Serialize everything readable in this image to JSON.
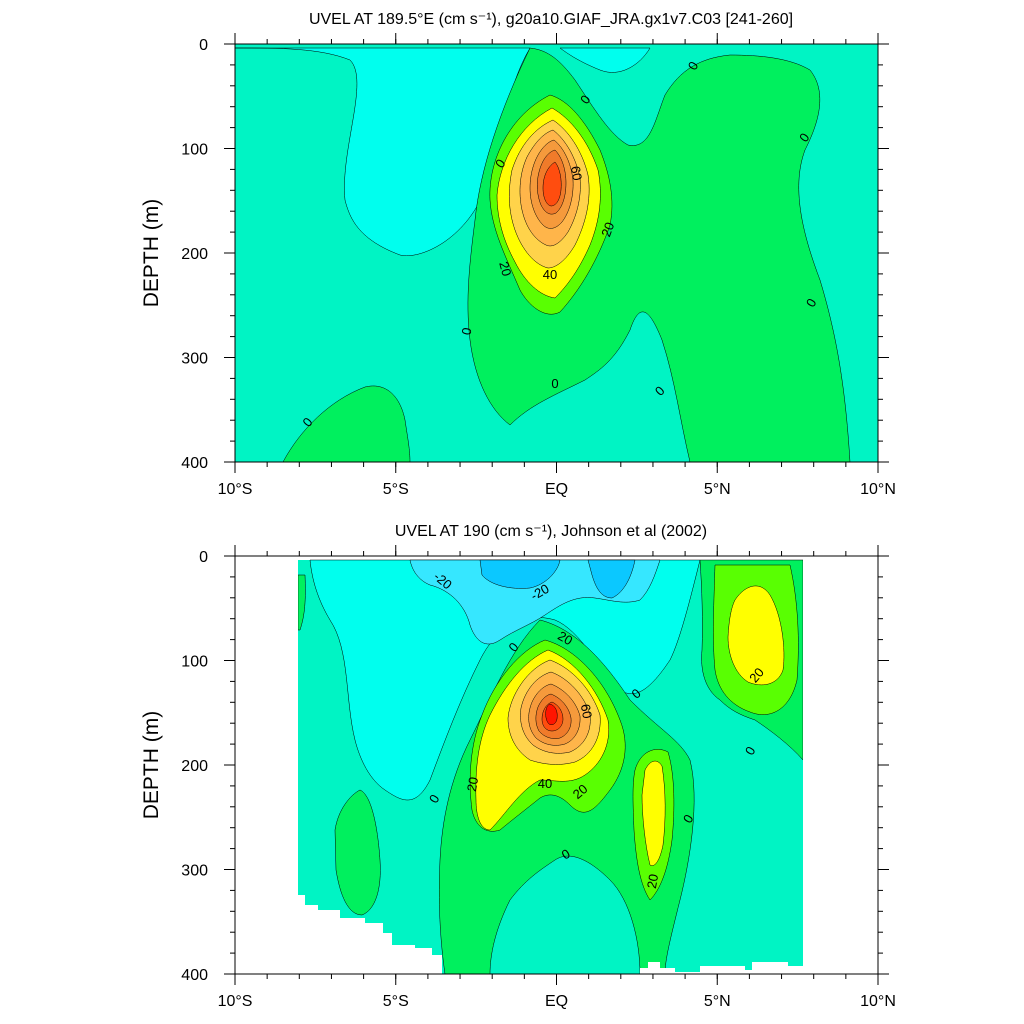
{
  "chart_data": [
    {
      "type": "contour",
      "title": "UVEL AT 189.5°E (cm s⁻¹), g20a10.GIAF_JRA.gx1v7.C03 [241-260]",
      "xlabel": "",
      "ylabel": "DEPTH (m)",
      "xlim": [
        -10,
        10
      ],
      "ylim": [
        0,
        400
      ],
      "y_reversed": true,
      "x_ticks": [
        {
          "value": -10,
          "label": "10°S"
        },
        {
          "value": -5,
          "label": "5°S"
        },
        {
          "value": 0,
          "label": "EQ"
        },
        {
          "value": 5,
          "label": "5°N"
        },
        {
          "value": 10,
          "label": "10°N"
        }
      ],
      "y_ticks": [
        {
          "value": 0,
          "label": "0"
        },
        {
          "value": 100,
          "label": "100"
        },
        {
          "value": 200,
          "label": "200"
        },
        {
          "value": 300,
          "label": "300"
        },
        {
          "value": 400,
          "label": "400"
        }
      ],
      "contour_interval": 10,
      "core": {
        "lat": 0.1,
        "depth": 145,
        "max_speed": 80
      },
      "contour_labels": [
        {
          "text": "0",
          "lat": 4.6,
          "depth": 20
        },
        {
          "text": "0",
          "lat": 1.3,
          "depth": 52
        },
        {
          "text": "0",
          "lat": 8.3,
          "depth": 90
        },
        {
          "text": "0",
          "lat": -1.4,
          "depth": 110
        },
        {
          "text": "60",
          "lat": 0.6,
          "depth": 125
        },
        {
          "text": "20",
          "lat": 2.0,
          "depth": 180
        },
        {
          "text": "20",
          "lat": -1.5,
          "depth": 215
        },
        {
          "text": "40",
          "lat": 0.0,
          "depth": 218
        },
        {
          "text": "0",
          "lat": 8.4,
          "depth": 245
        },
        {
          "text": "0",
          "lat": -2.5,
          "depth": 272
        },
        {
          "text": "0",
          "lat": 0.2,
          "depth": 325
        },
        {
          "text": "0",
          "lat": 3.6,
          "depth": 330
        },
        {
          "text": "0",
          "lat": -7.7,
          "depth": 362
        }
      ]
    },
    {
      "type": "contour",
      "title": "UVEL AT 190 (cm s⁻¹), Johnson et al (2002)",
      "xlabel": "",
      "ylabel": "DEPTH (m)",
      "xlim": [
        -10,
        10
      ],
      "ylim": [
        0,
        400
      ],
      "y_reversed": true,
      "x_ticks": [
        {
          "value": -10,
          "label": "10°S"
        },
        {
          "value": -5,
          "label": "5°S"
        },
        {
          "value": 0,
          "label": "EQ"
        },
        {
          "value": 5,
          "label": "5°N"
        },
        {
          "value": 10,
          "label": "10°N"
        }
      ],
      "y_ticks": [
        {
          "value": 0,
          "label": "0"
        },
        {
          "value": 100,
          "label": "100"
        },
        {
          "value": 200,
          "label": "200"
        },
        {
          "value": 300,
          "label": "300"
        },
        {
          "value": 400,
          "label": "400"
        }
      ],
      "contour_interval": 10,
      "data_lat_range": [
        -8,
        8
      ],
      "core": {
        "lat": 0.0,
        "depth": 150,
        "max_speed": 80
      },
      "contour_labels": [
        {
          "text": "-20",
          "lat": -3.5,
          "depth": 28
        },
        {
          "text": "-20",
          "lat": -0.3,
          "depth": 38
        },
        {
          "text": "20",
          "lat": 0.4,
          "depth": 78
        },
        {
          "text": "0",
          "lat": -1.0,
          "depth": 85
        },
        {
          "text": "20",
          "lat": 6.7,
          "depth": 110
        },
        {
          "text": "0",
          "lat": 2.9,
          "depth": 132
        },
        {
          "text": "60",
          "lat": 1.0,
          "depth": 152
        },
        {
          "text": "0",
          "lat": 6.4,
          "depth": 183
        },
        {
          "text": "20",
          "lat": -2.4,
          "depth": 215
        },
        {
          "text": "40",
          "lat": -0.2,
          "depth": 215
        },
        {
          "text": "20",
          "lat": 1.1,
          "depth": 228
        },
        {
          "text": "0",
          "lat": -3.6,
          "depth": 232
        },
        {
          "text": "0",
          "lat": 4.6,
          "depth": 250
        },
        {
          "text": "0",
          "lat": 0.6,
          "depth": 285
        },
        {
          "text": "20",
          "lat": 3.3,
          "depth": 310
        }
      ]
    }
  ],
  "colors": {
    "minus30": "#0bc8ff",
    "minus20": "#36e7ff",
    "minus10": "#00ffee",
    "zero": "#00f4c4",
    "plus10": "#00f05e",
    "plus20": "#59ff02",
    "plus30": "#ffff00",
    "plus40": "#ffd34a",
    "plus50": "#ffb54a",
    "plus60": "#f59a3c",
    "plus70": "#f07b2a",
    "plus80": "#ff4d0f",
    "plus90": "#ff1500"
  }
}
